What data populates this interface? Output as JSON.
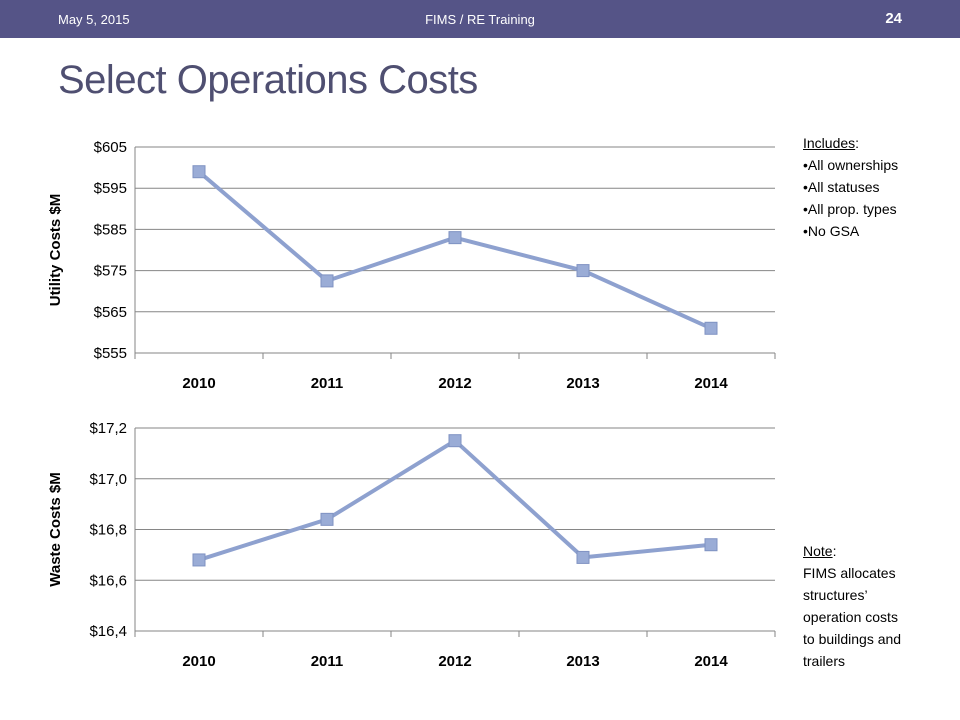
{
  "header": {
    "date": "May 5, 2015",
    "center": "FIMS / RE Training",
    "page_number": "24"
  },
  "title": "Select Operations Costs",
  "includes": {
    "heading": "Includes",
    "items": [
      "All ownerships",
      "All statuses",
      "All prop. types",
      "No GSA"
    ]
  },
  "note": {
    "heading": "Note",
    "text_lines": [
      "FIMS allocates",
      "structures’",
      "operation costs",
      "to buildings and",
      "trailers"
    ]
  },
  "colors": {
    "header_bg": "#555487",
    "title": "#4f4f71",
    "series": "#8ea1cf",
    "marker": "#9aacd6"
  },
  "chart_data": [
    {
      "type": "line",
      "ylabel": "Utility Costs $M",
      "categories": [
        "2010",
        "2011",
        "2012",
        "2013",
        "2014"
      ],
      "values": [
        599,
        572.5,
        583,
        575,
        561
      ],
      "ylim": [
        555,
        605
      ],
      "yticks": [
        555,
        565,
        575,
        585,
        595,
        605
      ],
      "ytick_labels": [
        "$555",
        "$565",
        "$575",
        "$585",
        "$595",
        "$605"
      ],
      "grid": true
    },
    {
      "type": "line",
      "ylabel": "Waste Costs $M",
      "categories": [
        "2010",
        "2011",
        "2012",
        "2013",
        "2014"
      ],
      "values": [
        16.68,
        16.84,
        17.15,
        16.69,
        16.74
      ],
      "ylim": [
        16.4,
        17.2
      ],
      "yticks": [
        16.4,
        16.6,
        16.8,
        17.0,
        17.2
      ],
      "ytick_labels": [
        "$16,4",
        "$16,6",
        "$16,8",
        "$17,0",
        "$17,2"
      ],
      "grid": true
    }
  ]
}
